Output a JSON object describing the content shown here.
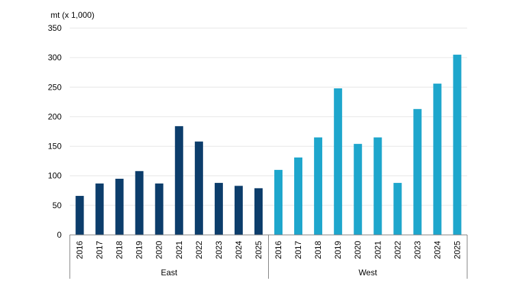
{
  "chart_data": {
    "type": "bar",
    "unit_label": "mt (x 1,000)",
    "ylim": [
      0,
      350
    ],
    "yticks": [
      0,
      50,
      100,
      150,
      200,
      250,
      300,
      350
    ],
    "grid": true,
    "groups": [
      {
        "label": "East",
        "color": "#0c3d6b",
        "categories": [
          "2016",
          "2017",
          "2018",
          "2019",
          "2020",
          "2021",
          "2022",
          "2023",
          "2024",
          "2025"
        ],
        "values": [
          66,
          87,
          95,
          108,
          87,
          184,
          158,
          88,
          83,
          79
        ]
      },
      {
        "label": "West",
        "color": "#1ea6cc",
        "categories": [
          "2016",
          "2017",
          "2018",
          "2019",
          "2020",
          "2021",
          "2022",
          "2023",
          "2024",
          "2025"
        ],
        "values": [
          110,
          131,
          165,
          248,
          154,
          165,
          88,
          213,
          256,
          305
        ]
      }
    ]
  }
}
